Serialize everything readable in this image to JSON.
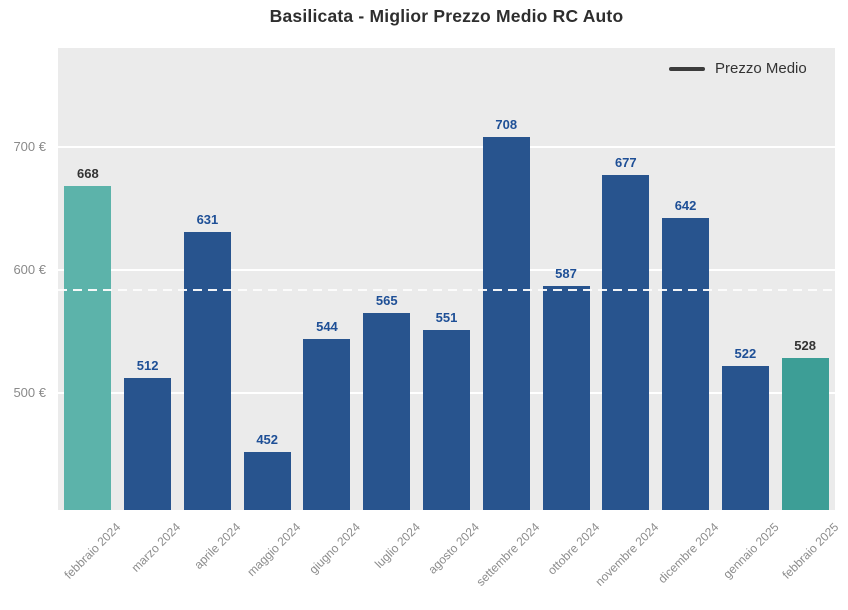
{
  "title": "Basilicata - Miglior Prezzo Medio RC Auto",
  "legend": {
    "label": "Prezzo Medio"
  },
  "colors": {
    "plot_background": "#ebebeb",
    "gridline": "#ffffff",
    "average_line": "#fdfdfd",
    "bar_default": "#28548e",
    "bar_first_highlight": "#5cb3aa",
    "bar_last_highlight": "#3d9e96",
    "value_label_default": "#1e4f96",
    "value_label_highlight": "#333333",
    "tick_label": "#8a8a8a",
    "title_text": "#2e2e2e",
    "legend_line": "#3c3c3c"
  },
  "chart_data": {
    "type": "bar",
    "title": "Basilicata - Miglior Prezzo Medio RC Auto",
    "series_name": "Prezzo Medio",
    "categories": [
      "febbraio 2024",
      "marzo 2024",
      "aprile 2024",
      "maggio 2024",
      "giugno 2024",
      "luglio 2024",
      "agosto 2024",
      "settembre 2024",
      "ottobre 2024",
      "novembre 2024",
      "dicembre 2024",
      "gennaio 2025",
      "febbraio 2025"
    ],
    "values": [
      668,
      512,
      631,
      452,
      544,
      565,
      551,
      708,
      587,
      677,
      642,
      522,
      528
    ],
    "value_suffix": "€",
    "yticks": [
      {
        "value": 500,
        "label": "500 €"
      },
      {
        "value": 600,
        "label": "600 €"
      },
      {
        "value": 700,
        "label": "700 €"
      }
    ],
    "ylim": [
      405,
      780
    ],
    "average_line_value": 583.6,
    "grid": true,
    "legend_position": "top-right",
    "bar_colors": {
      "0": "#5cb3aa",
      "12": "#3d9e96",
      "default": "#28548e"
    },
    "value_label_colors": {
      "0": "#333333",
      "12": "#333333",
      "default": "#1e4f96"
    }
  }
}
